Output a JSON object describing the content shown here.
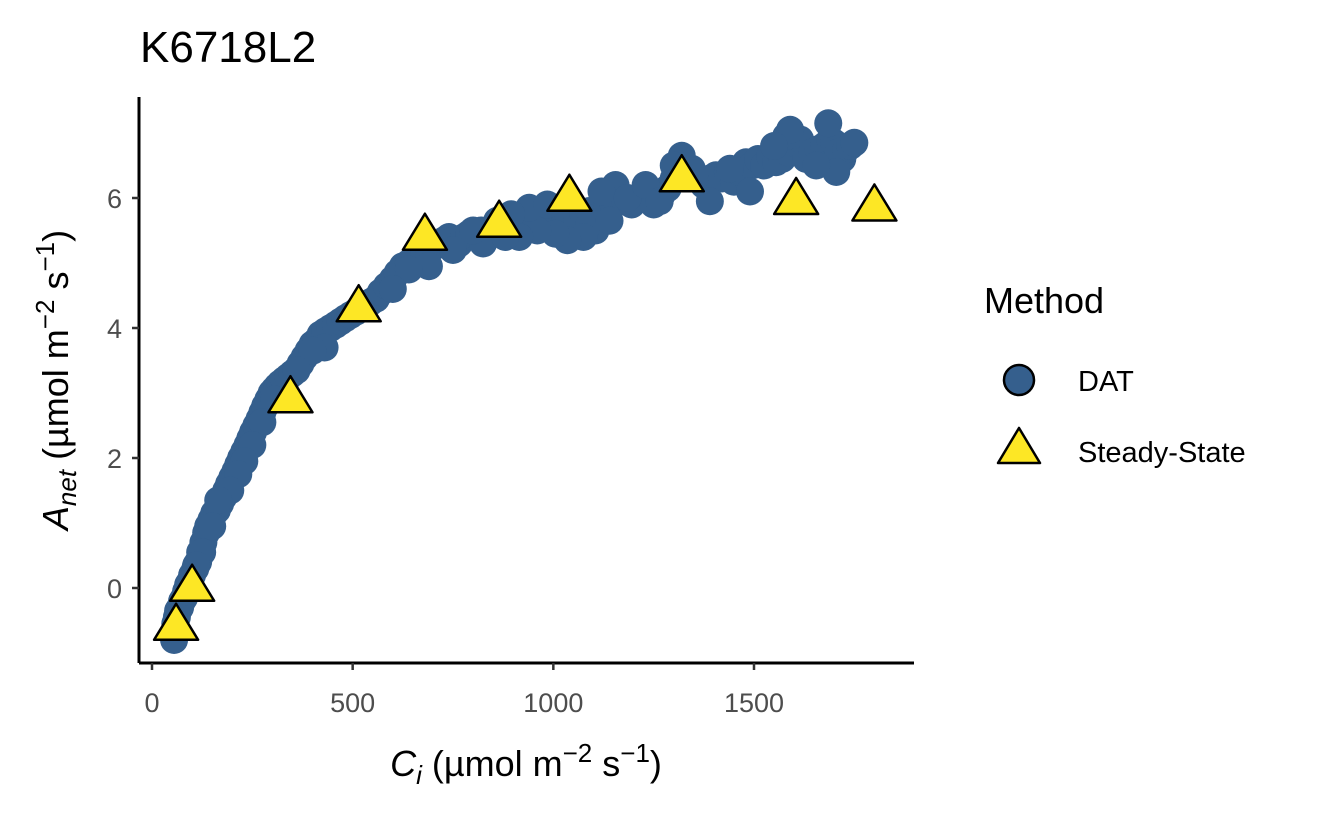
{
  "chart_data": {
    "type": "scatter",
    "title": "K6718L2",
    "xlabel": {
      "symbol": "C",
      "sub": "i",
      "unit_open": " (µmol m",
      "exp1": "−2",
      "mid": " s",
      "exp2": "−1",
      "close": ")"
    },
    "ylabel": {
      "symbol": "A",
      "sub": "net",
      "unit_open": " (µmol m",
      "exp1": "−2",
      "mid": " s",
      "exp2": "−1",
      "close": ")"
    },
    "xlim": [
      0,
      1880
    ],
    "ylim": [
      -1.15,
      7.6
    ],
    "x_ticks": [
      0,
      500,
      1000,
      1500
    ],
    "y_ticks": [
      0,
      2,
      4,
      6
    ],
    "grid": false,
    "legend": {
      "title": "Method",
      "position": "right"
    },
    "series": [
      {
        "name": "DAT",
        "marker": "circle",
        "color": "#355F8D",
        "points": [
          [
            55,
            -0.8
          ],
          [
            58,
            -0.55
          ],
          [
            62,
            -0.45
          ],
          [
            65,
            -0.35
          ],
          [
            70,
            -0.3
          ],
          [
            75,
            -0.2
          ],
          [
            80,
            -0.15
          ],
          [
            85,
            -0.05
          ],
          [
            90,
            0.05
          ],
          [
            95,
            0.1
          ],
          [
            100,
            0.2
          ],
          [
            108,
            0.3
          ],
          [
            115,
            0.4
          ],
          [
            120,
            0.55
          ],
          [
            128,
            0.7
          ],
          [
            135,
            0.85
          ],
          [
            140,
            0.95
          ],
          [
            148,
            1.05
          ],
          [
            155,
            1.15
          ],
          [
            162,
            1.2
          ],
          [
            170,
            1.3
          ],
          [
            178,
            1.4
          ],
          [
            185,
            1.5
          ],
          [
            192,
            1.6
          ],
          [
            200,
            1.7
          ],
          [
            208,
            1.8
          ],
          [
            215,
            1.9
          ],
          [
            222,
            2.0
          ],
          [
            230,
            2.1
          ],
          [
            238,
            2.2
          ],
          [
            245,
            2.3
          ],
          [
            252,
            2.4
          ],
          [
            260,
            2.5
          ],
          [
            268,
            2.6
          ],
          [
            275,
            2.7
          ],
          [
            282,
            2.8
          ],
          [
            290,
            2.9
          ],
          [
            298,
            3.0
          ],
          [
            305,
            3.05
          ],
          [
            312,
            3.1
          ],
          [
            320,
            3.15
          ],
          [
            330,
            3.2
          ],
          [
            340,
            3.25
          ],
          [
            350,
            3.3
          ],
          [
            360,
            3.35
          ],
          [
            370,
            3.45
          ],
          [
            380,
            3.55
          ],
          [
            390,
            3.65
          ],
          [
            400,
            3.75
          ],
          [
            410,
            3.8
          ],
          [
            420,
            3.9
          ],
          [
            432,
            3.95
          ],
          [
            445,
            4.0
          ],
          [
            458,
            4.05
          ],
          [
            470,
            4.1
          ],
          [
            482,
            4.15
          ],
          [
            495,
            4.2
          ],
          [
            508,
            4.25
          ],
          [
            520,
            4.3
          ],
          [
            532,
            4.35
          ],
          [
            545,
            4.4
          ],
          [
            558,
            4.45
          ],
          [
            570,
            4.55
          ],
          [
            585,
            4.65
          ],
          [
            600,
            4.75
          ],
          [
            612,
            4.85
          ],
          [
            625,
            4.95
          ],
          [
            640,
            5.0
          ],
          [
            652,
            5.05
          ],
          [
            665,
            5.1
          ],
          [
            678,
            5.15
          ],
          [
            690,
            5.2
          ],
          [
            702,
            5.25
          ],
          [
            715,
            5.3
          ],
          [
            728,
            5.35
          ],
          [
            740,
            5.4
          ],
          [
            752,
            5.35
          ],
          [
            765,
            5.3
          ],
          [
            778,
            5.4
          ],
          [
            790,
            5.45
          ],
          [
            805,
            5.45
          ],
          [
            820,
            5.5
          ],
          [
            835,
            5.5
          ],
          [
            850,
            5.55
          ],
          [
            865,
            5.55
          ],
          [
            880,
            5.6
          ],
          [
            895,
            5.6
          ],
          [
            910,
            5.55
          ],
          [
            925,
            5.65
          ],
          [
            940,
            5.7
          ],
          [
            955,
            5.55
          ],
          [
            970,
            5.6
          ],
          [
            985,
            5.75
          ],
          [
            1000,
            5.8
          ],
          [
            1015,
            5.7
          ],
          [
            1030,
            5.65
          ],
          [
            1045,
            5.5
          ],
          [
            1060,
            5.65
          ],
          [
            1075,
            5.75
          ],
          [
            1090,
            5.8
          ],
          [
            1105,
            5.5
          ],
          [
            1120,
            5.75
          ],
          [
            1135,
            5.85
          ],
          [
            1150,
            5.9
          ],
          [
            1165,
            6.05
          ],
          [
            1180,
            5.95
          ],
          [
            1195,
            5.9
          ],
          [
            1210,
            6.0
          ],
          [
            1225,
            6.05
          ],
          [
            1240,
            6.1
          ],
          [
            1255,
            6.0
          ],
          [
            1270,
            6.05
          ],
          [
            1285,
            6.15
          ],
          [
            1300,
            6.3
          ],
          [
            1315,
            6.45
          ],
          [
            1330,
            6.35
          ],
          [
            1345,
            6.4
          ],
          [
            1360,
            6.3
          ],
          [
            1375,
            6.2
          ],
          [
            1390,
            6.3
          ],
          [
            1405,
            6.35
          ],
          [
            1420,
            6.3
          ],
          [
            1435,
            6.4
          ],
          [
            1450,
            6.25
          ],
          [
            1465,
            6.4
          ],
          [
            1480,
            6.55
          ],
          [
            1495,
            6.5
          ],
          [
            1510,
            6.6
          ],
          [
            1525,
            6.5
          ],
          [
            1540,
            6.65
          ],
          [
            1555,
            6.55
          ],
          [
            1570,
            6.6
          ],
          [
            1585,
            6.7
          ],
          [
            1600,
            6.85
          ],
          [
            1615,
            6.9
          ],
          [
            1630,
            6.6
          ],
          [
            1645,
            6.7
          ],
          [
            1660,
            6.75
          ],
          [
            1675,
            6.8
          ],
          [
            1690,
            6.9
          ],
          [
            1700,
            6.85
          ],
          [
            1710,
            6.7
          ],
          [
            1720,
            6.6
          ],
          [
            1730,
            6.75
          ],
          [
            1740,
            6.8
          ],
          [
            1750,
            6.85
          ],
          [
            1580,
            6.95
          ],
          [
            1590,
            7.05
          ],
          [
            1685,
            7.15
          ],
          [
            1705,
            6.4
          ],
          [
            1655,
            6.5
          ],
          [
            1550,
            6.8
          ],
          [
            1345,
            6.45
          ],
          [
            1320,
            6.65
          ],
          [
            1300,
            6.5
          ],
          [
            1200,
            5.95
          ],
          [
            1155,
            6.2
          ],
          [
            1120,
            6.1
          ],
          [
            1090,
            5.6
          ],
          [
            1075,
            5.4
          ],
          [
            1035,
            5.35
          ],
          [
            1005,
            5.45
          ],
          [
            960,
            5.5
          ],
          [
            940,
            5.85
          ],
          [
            895,
            5.75
          ],
          [
            860,
            5.65
          ],
          [
            825,
            5.3
          ],
          [
            750,
            5.2
          ],
          [
            690,
            4.95
          ],
          [
            640,
            4.9
          ],
          [
            600,
            4.6
          ],
          [
            430,
            3.7
          ],
          [
            400,
            3.65
          ],
          [
            360,
            3.35
          ],
          [
            305,
            2.9
          ],
          [
            275,
            2.55
          ],
          [
            250,
            2.2
          ],
          [
            230,
            1.95
          ],
          [
            215,
            1.75
          ],
          [
            195,
            1.5
          ],
          [
            165,
            1.35
          ],
          [
            150,
            0.95
          ],
          [
            125,
            0.55
          ],
          [
            110,
            0.35
          ],
          [
            1390,
            5.95
          ],
          [
            1490,
            6.1
          ],
          [
            1440,
            6.45
          ],
          [
            1250,
            5.9
          ],
          [
            1185,
            6.0
          ],
          [
            1230,
            6.2
          ],
          [
            1265,
            5.95
          ],
          [
            1140,
            5.65
          ],
          [
            985,
            5.9
          ],
          [
            915,
            5.4
          ],
          [
            880,
            5.4
          ],
          [
            800,
            5.5
          ]
        ]
      },
      {
        "name": "Steady-State",
        "marker": "triangle",
        "color": "#FDE725",
        "points": [
          [
            60,
            -0.55
          ],
          [
            100,
            0.05
          ],
          [
            345,
            2.95
          ],
          [
            515,
            4.35
          ],
          [
            680,
            5.45
          ],
          [
            865,
            5.65
          ],
          [
            1040,
            6.05
          ],
          [
            1320,
            6.35
          ],
          [
            1605,
            6.0
          ],
          [
            1800,
            5.9
          ]
        ]
      }
    ]
  }
}
